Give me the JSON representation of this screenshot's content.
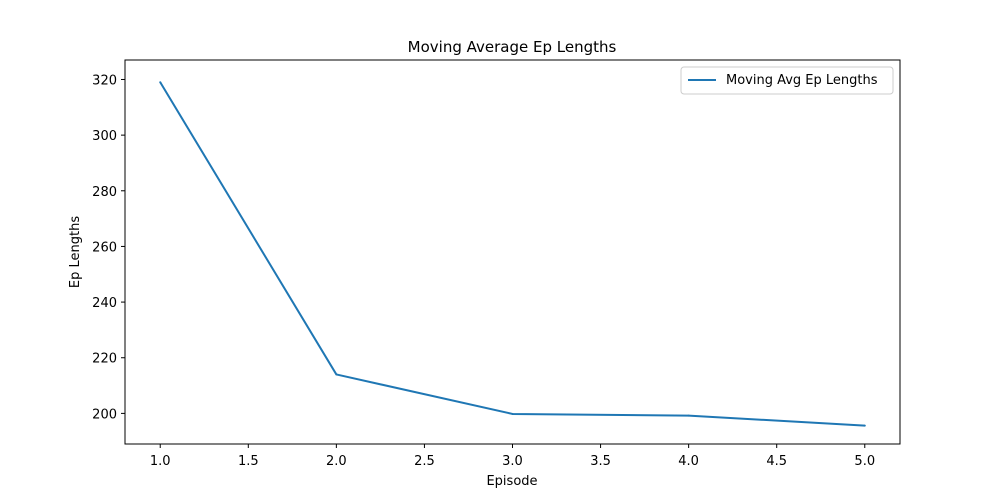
{
  "chart_data": {
    "type": "line",
    "title": "Moving Average Ep Lengths",
    "xlabel": "Episode",
    "ylabel": "Ep Lengths",
    "xlim": [
      0.8,
      5.2
    ],
    "ylim": [
      189,
      327
    ],
    "xticks": [
      1.0,
      1.5,
      2.0,
      2.5,
      3.0,
      3.5,
      4.0,
      4.5,
      5.0
    ],
    "xtick_labels": [
      "1.0",
      "1.5",
      "2.0",
      "2.5",
      "3.0",
      "3.5",
      "4.0",
      "4.5",
      "5.0"
    ],
    "yticks": [
      200,
      220,
      240,
      260,
      280,
      300,
      320
    ],
    "ytick_labels": [
      "200",
      "220",
      "240",
      "260",
      "280",
      "300",
      "320"
    ],
    "grid": false,
    "legend_position": "top-right",
    "series": [
      {
        "name": "Moving Avg Ep Lengths",
        "color": "#1f77b4",
        "x": [
          1,
          2,
          3,
          4,
          5
        ],
        "y": [
          319,
          214,
          199.8,
          199.2,
          195.6
        ]
      }
    ]
  }
}
